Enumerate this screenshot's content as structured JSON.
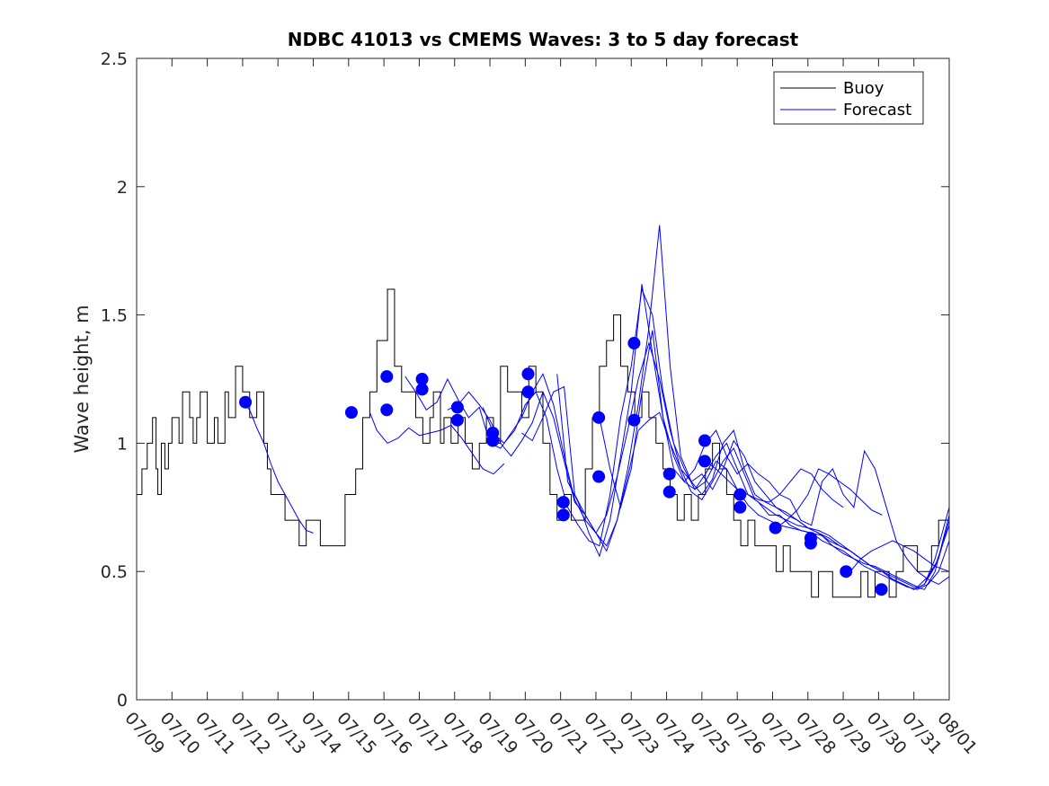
{
  "chart_data": {
    "type": "line",
    "title": "NDBC 41013 vs CMEMS Waves: 3 to 5 day forecast",
    "xlabel": "",
    "ylabel": "Wave height, m",
    "xlim": [
      "07/09",
      "08/01"
    ],
    "ylim": [
      0,
      2.5
    ],
    "x_ticks": [
      "07/09",
      "07/10",
      "07/11",
      "07/12",
      "07/13",
      "07/14",
      "07/15",
      "07/16",
      "07/17",
      "07/18",
      "07/19",
      "07/20",
      "07/21",
      "07/22",
      "07/23",
      "07/24",
      "07/25",
      "07/26",
      "07/27",
      "07/28",
      "07/29",
      "07/30",
      "07/31",
      "08/01"
    ],
    "y_ticks": [
      "0",
      "0.5",
      "1",
      "1.5",
      "2",
      "2.5"
    ],
    "grid": false,
    "legend": {
      "placement": "top-right",
      "entries": [
        "Buoy",
        "Forecast"
      ]
    },
    "colors": {
      "buoy": "#000000",
      "forecast": "#0000ff"
    },
    "series": [
      {
        "name": "Buoy",
        "style": "step",
        "x": [
          0,
          0.15,
          0.3,
          0.45,
          0.55,
          0.6,
          0.7,
          0.8,
          0.9,
          1.0,
          1.2,
          1.3,
          1.5,
          1.6,
          1.7,
          1.8,
          2.0,
          2.2,
          2.3,
          2.5,
          2.6,
          2.8,
          3.0,
          3.2,
          3.4,
          3.6,
          3.7,
          3.8,
          4.0,
          4.2,
          4.4,
          4.6,
          4.8,
          5.0,
          5.2,
          5.3,
          5.5,
          5.7,
          5.9,
          6.2,
          6.4,
          6.6,
          6.8,
          7.1,
          7.3,
          7.5,
          7.7,
          7.9,
          8.1,
          8.3,
          8.4,
          8.6,
          8.7,
          8.9,
          9.1,
          9.3,
          9.5,
          9.7,
          9.9,
          10.1,
          10.3,
          10.5,
          10.7,
          10.9,
          11.1,
          11.3,
          11.5,
          11.7,
          11.9,
          12.1,
          12.3,
          12.5,
          12.7,
          12.9,
          13.1,
          13.3,
          13.5,
          13.7,
          13.9,
          14.1,
          14.3,
          14.5,
          14.7,
          14.9,
          15.1,
          15.3,
          15.5,
          15.7,
          15.9,
          16.1,
          16.3,
          16.5,
          16.7,
          16.9,
          17.1,
          17.3,
          17.5,
          17.7,
          17.9,
          18.1,
          18.3,
          18.5,
          18.7,
          18.9,
          19.1,
          19.3,
          19.5,
          19.7,
          19.9,
          20.1,
          20.3,
          20.5,
          20.7,
          20.9,
          21.1,
          21.3,
          21.5,
          21.7,
          21.9,
          22.1,
          22.3,
          22.5,
          22.7,
          23.0
        ],
        "y": [
          0.8,
          0.9,
          1.0,
          1.1,
          0.9,
          0.8,
          1.0,
          0.9,
          1.0,
          1.1,
          1.0,
          1.2,
          1.1,
          1.0,
          1.1,
          1.2,
          1.0,
          1.1,
          1.0,
          1.2,
          1.1,
          1.3,
          1.2,
          1.1,
          1.2,
          1.0,
          0.9,
          0.8,
          0.8,
          0.7,
          0.7,
          0.6,
          0.7,
          0.7,
          0.6,
          0.6,
          0.6,
          0.6,
          0.8,
          0.9,
          1.1,
          1.2,
          1.4,
          1.6,
          1.3,
          1.2,
          1.2,
          1.1,
          1.0,
          1.1,
          1.2,
          1.0,
          1.1,
          1.0,
          1.1,
          1.0,
          0.9,
          1.0,
          1.1,
          1.0,
          1.3,
          1.2,
          1.2,
          1.1,
          1.3,
          1.2,
          1.0,
          0.8,
          0.7,
          0.8,
          0.7,
          0.7,
          0.9,
          1.1,
          1.3,
          1.4,
          1.5,
          1.3,
          1.2,
          1.1,
          1.2,
          1.1,
          1.0,
          0.9,
          0.8,
          0.7,
          0.8,
          0.7,
          0.8,
          0.9,
          1.0,
          0.9,
          0.8,
          0.7,
          0.6,
          0.7,
          0.6,
          0.6,
          0.6,
          0.5,
          0.6,
          0.5,
          0.5,
          0.5,
          0.4,
          0.5,
          0.5,
          0.4,
          0.4,
          0.4,
          0.4,
          0.5,
          0.4,
          0.5,
          0.5,
          0.4,
          0.5,
          0.6,
          0.6,
          0.5,
          0.5,
          0.6,
          0.7,
          0.8
        ]
      },
      {
        "name": "Forecast",
        "traces": [
          {
            "x": [
              3.0,
              3.2,
              3.4,
              3.6,
              3.8,
              4.0,
              4.2,
              4.4,
              4.6,
              4.8,
              5.0
            ],
            "y": [
              1.16,
              1.13,
              1.06,
              1.0,
              0.92,
              0.85,
              0.8,
              0.75,
              0.7,
              0.66,
              0.65
            ]
          },
          {
            "x": [
              6.6,
              6.8,
              7.1,
              7.4,
              7.7,
              8.0,
              8.3,
              8.6,
              8.9,
              9.2,
              9.5,
              9.8,
              10.1,
              10.4
            ],
            "y": [
              1.12,
              1.05,
              1.0,
              1.02,
              1.06,
              1.03,
              1.04,
              1.05,
              1.07,
              1.02,
              0.96,
              0.9,
              0.88,
              0.92
            ]
          },
          {
            "x": [
              7.6,
              7.9,
              8.2,
              8.5,
              8.8,
              9.1,
              9.4,
              9.7,
              10.0,
              10.3,
              10.6,
              10.9,
              11.2,
              11.5,
              11.8,
              12.1,
              12.4,
              12.7,
              13.0,
              13.3,
              13.6,
              13.9,
              14.2,
              14.5,
              14.8,
              15.1,
              15.4,
              15.7,
              16.0,
              16.3,
              16.6,
              16.9,
              17.2,
              17.5,
              17.8,
              18.1,
              18.4,
              18.7,
              19.0,
              19.3,
              19.6,
              19.9,
              20.2,
              20.5,
              20.8,
              21.1,
              21.4,
              21.7,
              22.0,
              22.3,
              22.6,
              23.0
            ],
            "y": [
              1.26,
              1.2,
              1.13,
              1.16,
              1.25,
              1.17,
              1.1,
              1.14,
              1.0,
              0.98,
              1.04,
              1.1,
              1.2,
              1.27,
              1.15,
              0.95,
              0.78,
              0.7,
              0.65,
              0.72,
              0.87,
              1.05,
              1.25,
              1.39,
              1.25,
              1.05,
              0.9,
              0.85,
              0.88,
              0.82,
              0.9,
              1.01,
              0.95,
              0.85,
              0.8,
              0.75,
              0.73,
              0.7,
              0.67,
              0.65,
              0.63,
              0.6,
              0.58,
              0.55,
              0.52,
              0.5,
              0.48,
              0.46,
              0.44,
              0.43,
              0.5,
              0.72
            ]
          },
          {
            "x": [
              8.8,
              9.1,
              9.4,
              9.7,
              10.0,
              10.3,
              10.6,
              10.9,
              11.2,
              11.5,
              11.8,
              12.1,
              12.4,
              12.7,
              13.0,
              13.3,
              13.6,
              13.9,
              14.2,
              14.5,
              14.8,
              15.1,
              15.4,
              15.7,
              16.0,
              16.3,
              16.6,
              16.9,
              17.2,
              17.5,
              17.8,
              18.1,
              18.4,
              18.7,
              19.0,
              19.3,
              19.6,
              19.9,
              20.2,
              20.5,
              20.8,
              21.1,
              21.4,
              21.7,
              22.0,
              22.3,
              22.6,
              23.0
            ],
            "y": [
              1.13,
              1.15,
              1.2,
              1.15,
              1.09,
              1.0,
              0.95,
              1.01,
              1.08,
              1.2,
              1.1,
              0.93,
              0.77,
              0.72,
              0.65,
              0.6,
              0.7,
              0.87,
              1.05,
              1.09,
              1.12,
              1.0,
              0.9,
              0.81,
              0.78,
              0.85,
              0.93,
              0.98,
              0.88,
              0.78,
              0.75,
              0.72,
              0.7,
              0.68,
              0.67,
              0.66,
              0.64,
              0.61,
              0.58,
              0.55,
              0.52,
              0.5,
              0.47,
              0.45,
              0.43,
              0.45,
              0.52,
              0.68
            ]
          },
          {
            "x": [
              9.8,
              10.1,
              10.4,
              10.7,
              11.0,
              11.3,
              11.6,
              11.9,
              12.2,
              12.5,
              12.8,
              13.1,
              13.4,
              13.7,
              14.0,
              14.3,
              14.6,
              14.9,
              15.2,
              15.5,
              15.8,
              16.1,
              16.4,
              16.7,
              17.0,
              17.3,
              17.6,
              17.9,
              18.2,
              18.5,
              18.8,
              19.1,
              19.4,
              19.7,
              20.0,
              20.3,
              20.6,
              20.9,
              21.2,
              21.5,
              21.8,
              22.1,
              22.4,
              22.7,
              23.0
            ],
            "y": [
              1.14,
              1.04,
              1.0,
              1.05,
              1.15,
              1.2,
              1.1,
              0.9,
              0.75,
              0.68,
              0.62,
              0.6,
              0.8,
              1.1,
              1.3,
              1.6,
              1.5,
              1.2,
              1.0,
              0.9,
              0.82,
              0.88,
              0.95,
              1.0,
              0.9,
              0.8,
              0.77,
              0.72,
              0.72,
              0.68,
              0.66,
              0.65,
              0.64,
              0.6,
              0.57,
              0.55,
              0.53,
              0.52,
              0.5,
              0.48,
              0.46,
              0.44,
              0.48,
              0.55,
              0.7
            ]
          },
          {
            "x": [
              10.9,
              11.2,
              11.5,
              11.8,
              12.1,
              12.4,
              12.7,
              13.0,
              13.3,
              13.6,
              13.9,
              14.2,
              14.5,
              14.8,
              15.1,
              15.4,
              15.7,
              16.0,
              16.3,
              16.6,
              16.9,
              17.2,
              17.5,
              17.8,
              18.1,
              18.4,
              18.7,
              19.0,
              19.3,
              19.6,
              19.9,
              20.2,
              20.5,
              20.8,
              21.1,
              21.4,
              21.7,
              22.0,
              22.3,
              22.6,
              23.0
            ],
            "y": [
              1.04,
              1.01,
              1.1,
              1.2,
              1.22,
              0.8,
              0.72,
              0.65,
              0.58,
              0.7,
              0.9,
              1.15,
              1.45,
              1.85,
              1.3,
              0.95,
              0.85,
              0.8,
              0.86,
              1.0,
              1.05,
              0.9,
              0.8,
              0.77,
              0.75,
              0.72,
              0.7,
              0.67,
              0.65,
              0.62,
              0.6,
              0.58,
              0.55,
              0.52,
              0.5,
              0.47,
              0.45,
              0.43,
              0.45,
              0.55,
              0.75
            ]
          },
          {
            "x": [
              11.9,
              12.2,
              12.5,
              12.8,
              13.1,
              13.4,
              13.7,
              14.0,
              14.3,
              14.6,
              14.9,
              15.2,
              15.5,
              15.8,
              16.1,
              16.4,
              16.7,
              17.0,
              17.3,
              17.6,
              17.9,
              18.2,
              18.5,
              18.8,
              19.1,
              19.4,
              19.7,
              20.0,
              20.3,
              20.6,
              20.9,
              21.2,
              21.5,
              21.8,
              22.1,
              22.4,
              22.7,
              23.0
            ],
            "y": [
              1.27,
              0.85,
              0.77,
              0.65,
              0.56,
              0.7,
              0.95,
              1.2,
              1.62,
              1.35,
              1.1,
              0.9,
              0.85,
              0.9,
              1.0,
              1.05,
              0.95,
              0.88,
              0.92,
              0.88,
              0.85,
              0.8,
              0.78,
              0.7,
              0.68,
              0.85,
              0.9,
              0.8,
              0.75,
              0.97,
              0.9,
              0.76,
              0.62,
              0.55,
              0.5,
              0.47,
              0.45,
              0.48
            ]
          },
          {
            "x": [
              13.1,
              13.4,
              13.7,
              14.0,
              14.3,
              14.6,
              14.9,
              15.2,
              15.5,
              15.8,
              16.1,
              16.4,
              16.7,
              17.0,
              17.3,
              17.6,
              17.9,
              18.2,
              18.5,
              18.8,
              19.1,
              19.4,
              19.7,
              20.0,
              20.3,
              20.6,
              20.9,
              21.2,
              21.5,
              21.8,
              22.1,
              22.4,
              22.7,
              23.0
            ],
            "y": [
              1.1,
              0.9,
              0.75,
              0.9,
              1.2,
              1.44,
              1.1,
              0.95,
              0.85,
              0.82,
              0.85,
              0.93,
              0.9,
              0.82,
              0.76,
              0.72,
              0.7,
              0.68,
              0.67,
              0.66,
              0.65,
              0.62,
              0.6,
              0.58,
              0.55,
              0.52,
              0.5,
              0.48,
              0.46,
              0.44,
              0.43,
              0.45,
              0.5,
              0.62
            ]
          },
          {
            "x": [
              16.1,
              16.4,
              16.7,
              17.0,
              17.3,
              17.6,
              17.9,
              18.2,
              18.5,
              18.8,
              19.1,
              19.4,
              19.7,
              20.0
            ],
            "y": [
              0.93,
              0.9,
              0.86,
              0.82,
              0.8,
              0.78,
              0.77,
              0.8,
              0.85,
              0.9,
              0.88,
              0.82,
              0.78,
              0.75
            ]
          },
          {
            "x": [
              18.1,
              18.4,
              18.7,
              19.0,
              19.3,
              19.6,
              19.9,
              20.2,
              20.5,
              20.8,
              21.1
            ],
            "y": [
              0.67,
              0.7,
              0.74,
              0.8,
              0.9,
              0.88,
              0.85,
              0.82,
              0.78,
              0.74,
              0.72
            ]
          },
          {
            "x": [
              20.2,
              20.5,
              20.8,
              21.1,
              21.4,
              21.7,
              22.0,
              22.3,
              22.6,
              23.0
            ],
            "y": [
              0.5,
              0.55,
              0.58,
              0.6,
              0.62,
              0.6,
              0.58,
              0.55,
              0.52,
              0.5
            ]
          }
        ]
      }
    ],
    "forecast_points": {
      "x": [
        3.08,
        6.08,
        7.08,
        7.08,
        8.08,
        8.08,
        9.08,
        9.08,
        10.08,
        10.08,
        11.08,
        11.08,
        12.08,
        12.08,
        13.08,
        13.08,
        14.08,
        14.08,
        15.08,
        15.08,
        16.08,
        16.08,
        17.08,
        17.08,
        18.08,
        19.08,
        19.08,
        20.08,
        21.08
      ],
      "y": [
        1.16,
        1.12,
        1.26,
        1.13,
        1.25,
        1.21,
        1.14,
        1.09,
        1.04,
        1.01,
        1.27,
        1.2,
        0.77,
        0.72,
        1.1,
        0.87,
        1.39,
        1.09,
        0.88,
        0.81,
        1.01,
        0.93,
        0.8,
        0.75,
        0.67,
        0.63,
        0.61,
        0.5,
        0.43
      ]
    }
  }
}
